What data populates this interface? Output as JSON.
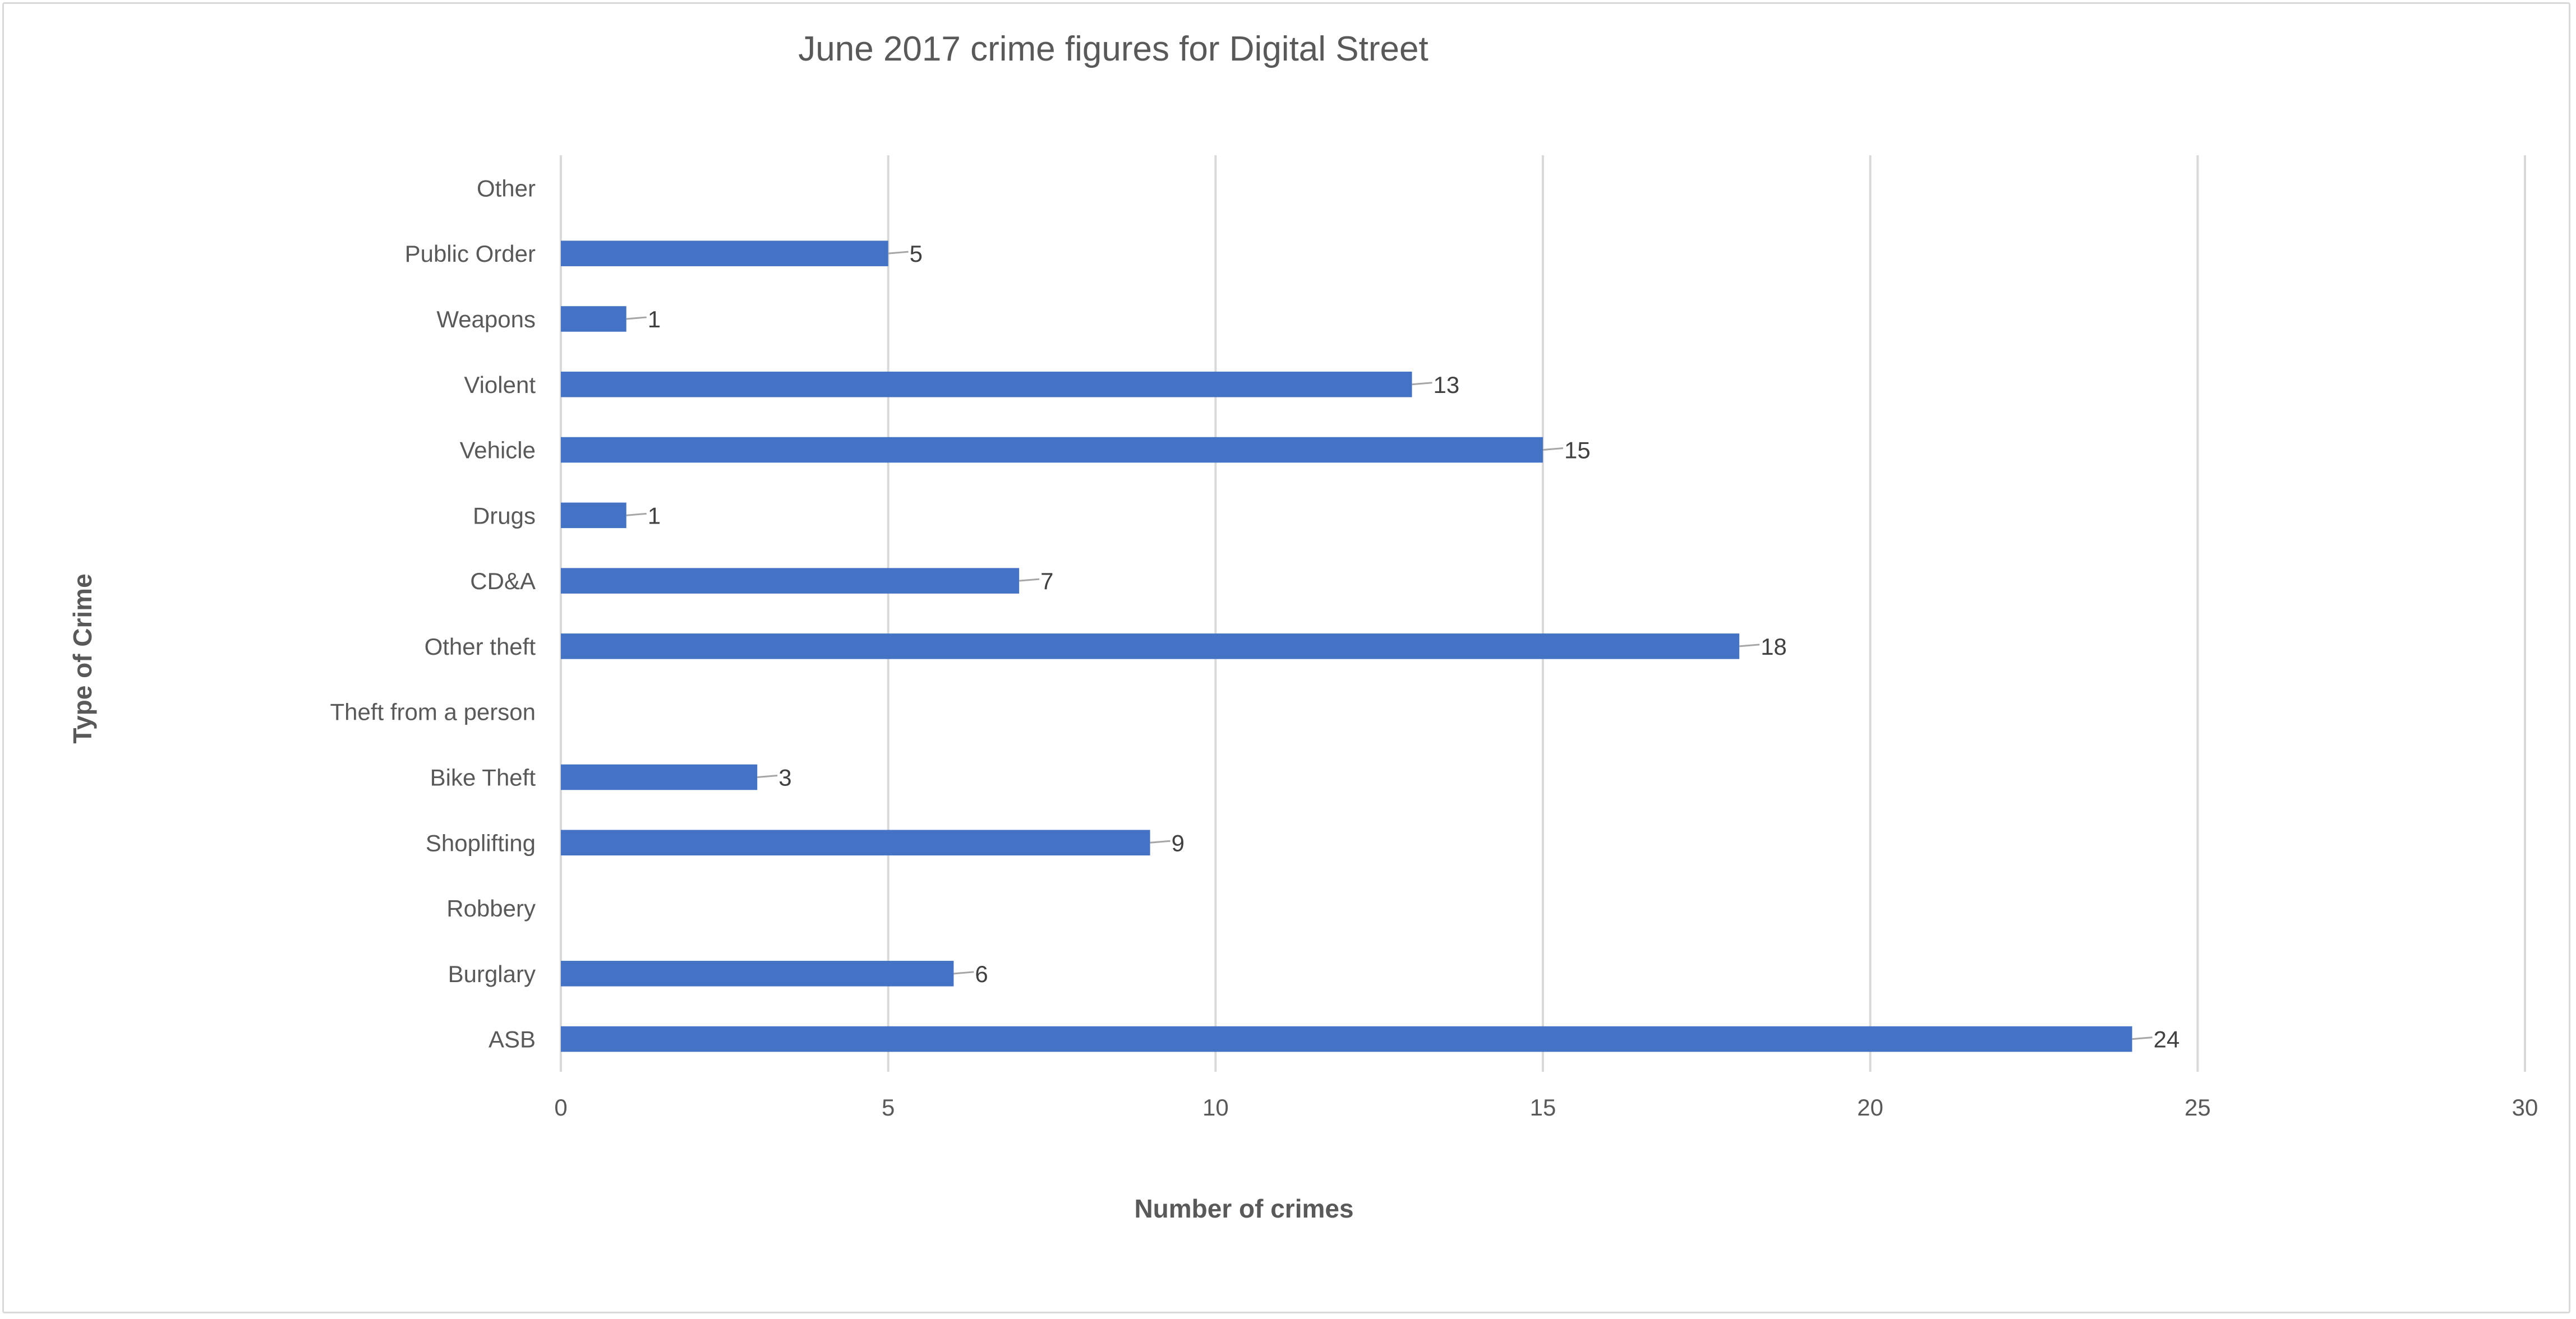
{
  "chart_data": {
    "type": "bar",
    "orientation": "horizontal",
    "title": "June 2017 crime figures for Digital Street",
    "xlabel": "Number of crimes",
    "ylabel": "Type of Crime",
    "categories": [
      "ASB",
      "Burglary",
      "Robbery",
      "Shoplifting",
      "Bike Theft",
      "Theft from a person",
      "Other theft ",
      "CD&A",
      "Drugs",
      "Vehicle",
      "Violent",
      "Weapons",
      "Public Order",
      "Other"
    ],
    "values": [
      24,
      6,
      null,
      9,
      3,
      null,
      18,
      7,
      1,
      15,
      13,
      1,
      5,
      null
    ],
    "xlim": [
      0,
      30
    ],
    "xticks": [
      0,
      5,
      10,
      15,
      20,
      25,
      30
    ],
    "grid": "vertical",
    "legend": "none",
    "bar_color": "#4472c4",
    "data_labels": true
  }
}
